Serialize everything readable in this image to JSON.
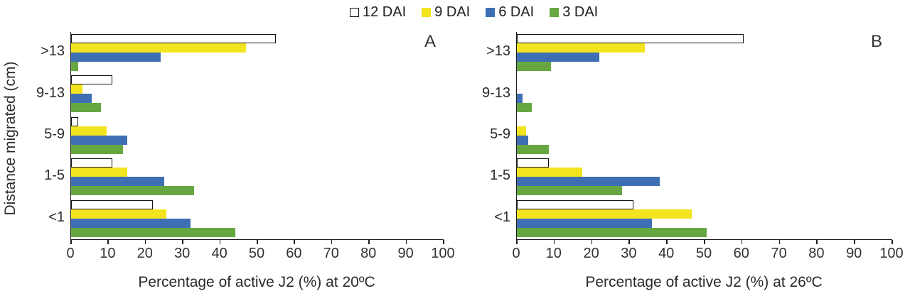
{
  "legend": {
    "items": [
      {
        "label": "12 DAI",
        "color": "#FFFFFF",
        "border": "#141414"
      },
      {
        "label": "9 DAI",
        "color": "#F2E41E",
        "border": null
      },
      {
        "label": "6 DAI",
        "color": "#3E6FB5",
        "border": null
      },
      {
        "label": "3 DAI",
        "color": "#67A742",
        "border": null
      }
    ]
  },
  "y_axis": {
    "title": "Distance migrated (cm)",
    "categories": [
      ">13",
      "9-13",
      "5-9",
      "1-5",
      "<1"
    ]
  },
  "chart_data": [
    {
      "type": "bar",
      "orientation": "horizontal",
      "panel": "A",
      "xlabel": "Percentage of active J2 (%) at 20ºC",
      "ylabel": "Distance migrated (cm)",
      "categories": [
        ">13",
        "9-13",
        "5-9",
        "1-5",
        "<1"
      ],
      "series": [
        {
          "name": "12 DAI",
          "values": [
            55,
            11,
            2,
            11,
            22
          ]
        },
        {
          "name": "9 DAI",
          "values": [
            47,
            3,
            9.5,
            15,
            25.5
          ]
        },
        {
          "name": "6 DAI",
          "values": [
            24,
            5.5,
            15,
            25,
            32
          ]
        },
        {
          "name": "3 DAI",
          "values": [
            2,
            8,
            14,
            33,
            44
          ]
        }
      ],
      "xlim": [
        0,
        100
      ],
      "xticks": [
        0,
        10,
        20,
        30,
        40,
        50,
        60,
        70,
        80,
        90,
        100
      ],
      "grid": false,
      "legend_position": "top"
    },
    {
      "type": "bar",
      "orientation": "horizontal",
      "panel": "B",
      "xlabel": "Percentage of active J2 (%) at 26ºC",
      "ylabel": "Distance migrated (cm)",
      "categories": [
        ">13",
        "9-13",
        "5-9",
        "1-5",
        "<1"
      ],
      "series": [
        {
          "name": "12 DAI",
          "values": [
            60.5,
            0,
            0,
            8.5,
            31
          ]
        },
        {
          "name": "9 DAI",
          "values": [
            34,
            0,
            2.5,
            17.5,
            46.5
          ]
        },
        {
          "name": "6 DAI",
          "values": [
            22,
            1.5,
            3,
            38,
            36
          ]
        },
        {
          "name": "3 DAI",
          "values": [
            9,
            4,
            8.5,
            28,
            50.5
          ]
        }
      ],
      "xlim": [
        0,
        100
      ],
      "xticks": [
        0,
        10,
        20,
        30,
        40,
        50,
        60,
        70,
        80,
        90,
        100
      ],
      "grid": false,
      "legend_position": "top"
    }
  ]
}
